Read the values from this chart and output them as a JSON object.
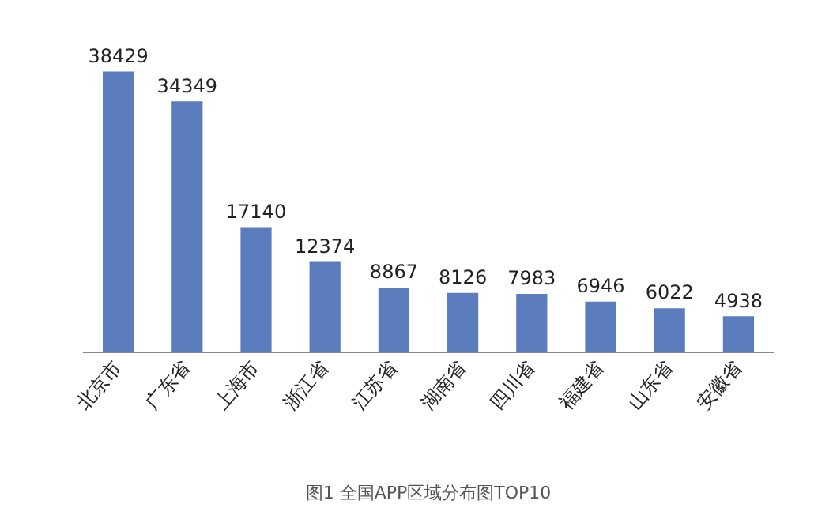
{
  "chart_data": {
    "type": "bar",
    "title": "图1 全国APP区域分布图TOP10",
    "categories": [
      "北京市",
      "广东省",
      "上海市",
      "浙江省",
      "江苏省",
      "湖南省",
      "四川省",
      "福建省",
      "山东省",
      "安徽省"
    ],
    "values": [
      38429,
      34349,
      17140,
      12374,
      8867,
      8126,
      7983,
      6946,
      6022,
      4938
    ],
    "color": "#5b7dbd",
    "data_labels": true,
    "grid": false,
    "legend": false
  }
}
